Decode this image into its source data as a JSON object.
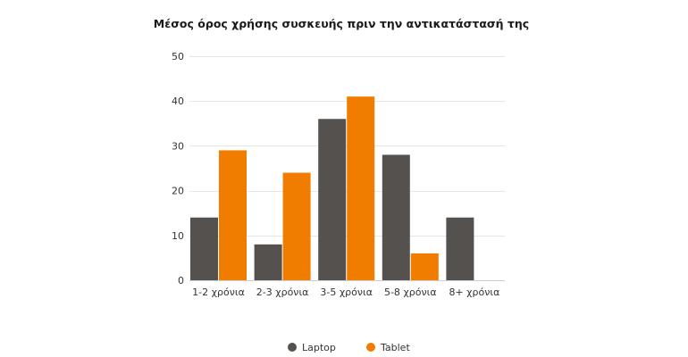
{
  "chart_data": {
    "type": "bar",
    "title": "Μέσος όρος χρήσης συσκευής πριν την αντικατάστασή της",
    "xlabel": "",
    "ylabel": "",
    "categories": [
      "1-2 χρόνια",
      "2-3 χρόνια",
      "3-5 χρόνια",
      "5-8 χρόνια",
      "8+ χρόνια"
    ],
    "series": [
      {
        "name": "Laptop",
        "color": "#54514e",
        "values": [
          14,
          8,
          36,
          28,
          14
        ]
      },
      {
        "name": "Tablet",
        "color": "#f07c00",
        "values": [
          29,
          24,
          41,
          6,
          0
        ]
      }
    ],
    "ylim": [
      0,
      50
    ],
    "yticks": [
      0,
      10,
      20,
      30,
      40,
      50
    ],
    "grid": true,
    "legend_position": "bottom-center"
  }
}
